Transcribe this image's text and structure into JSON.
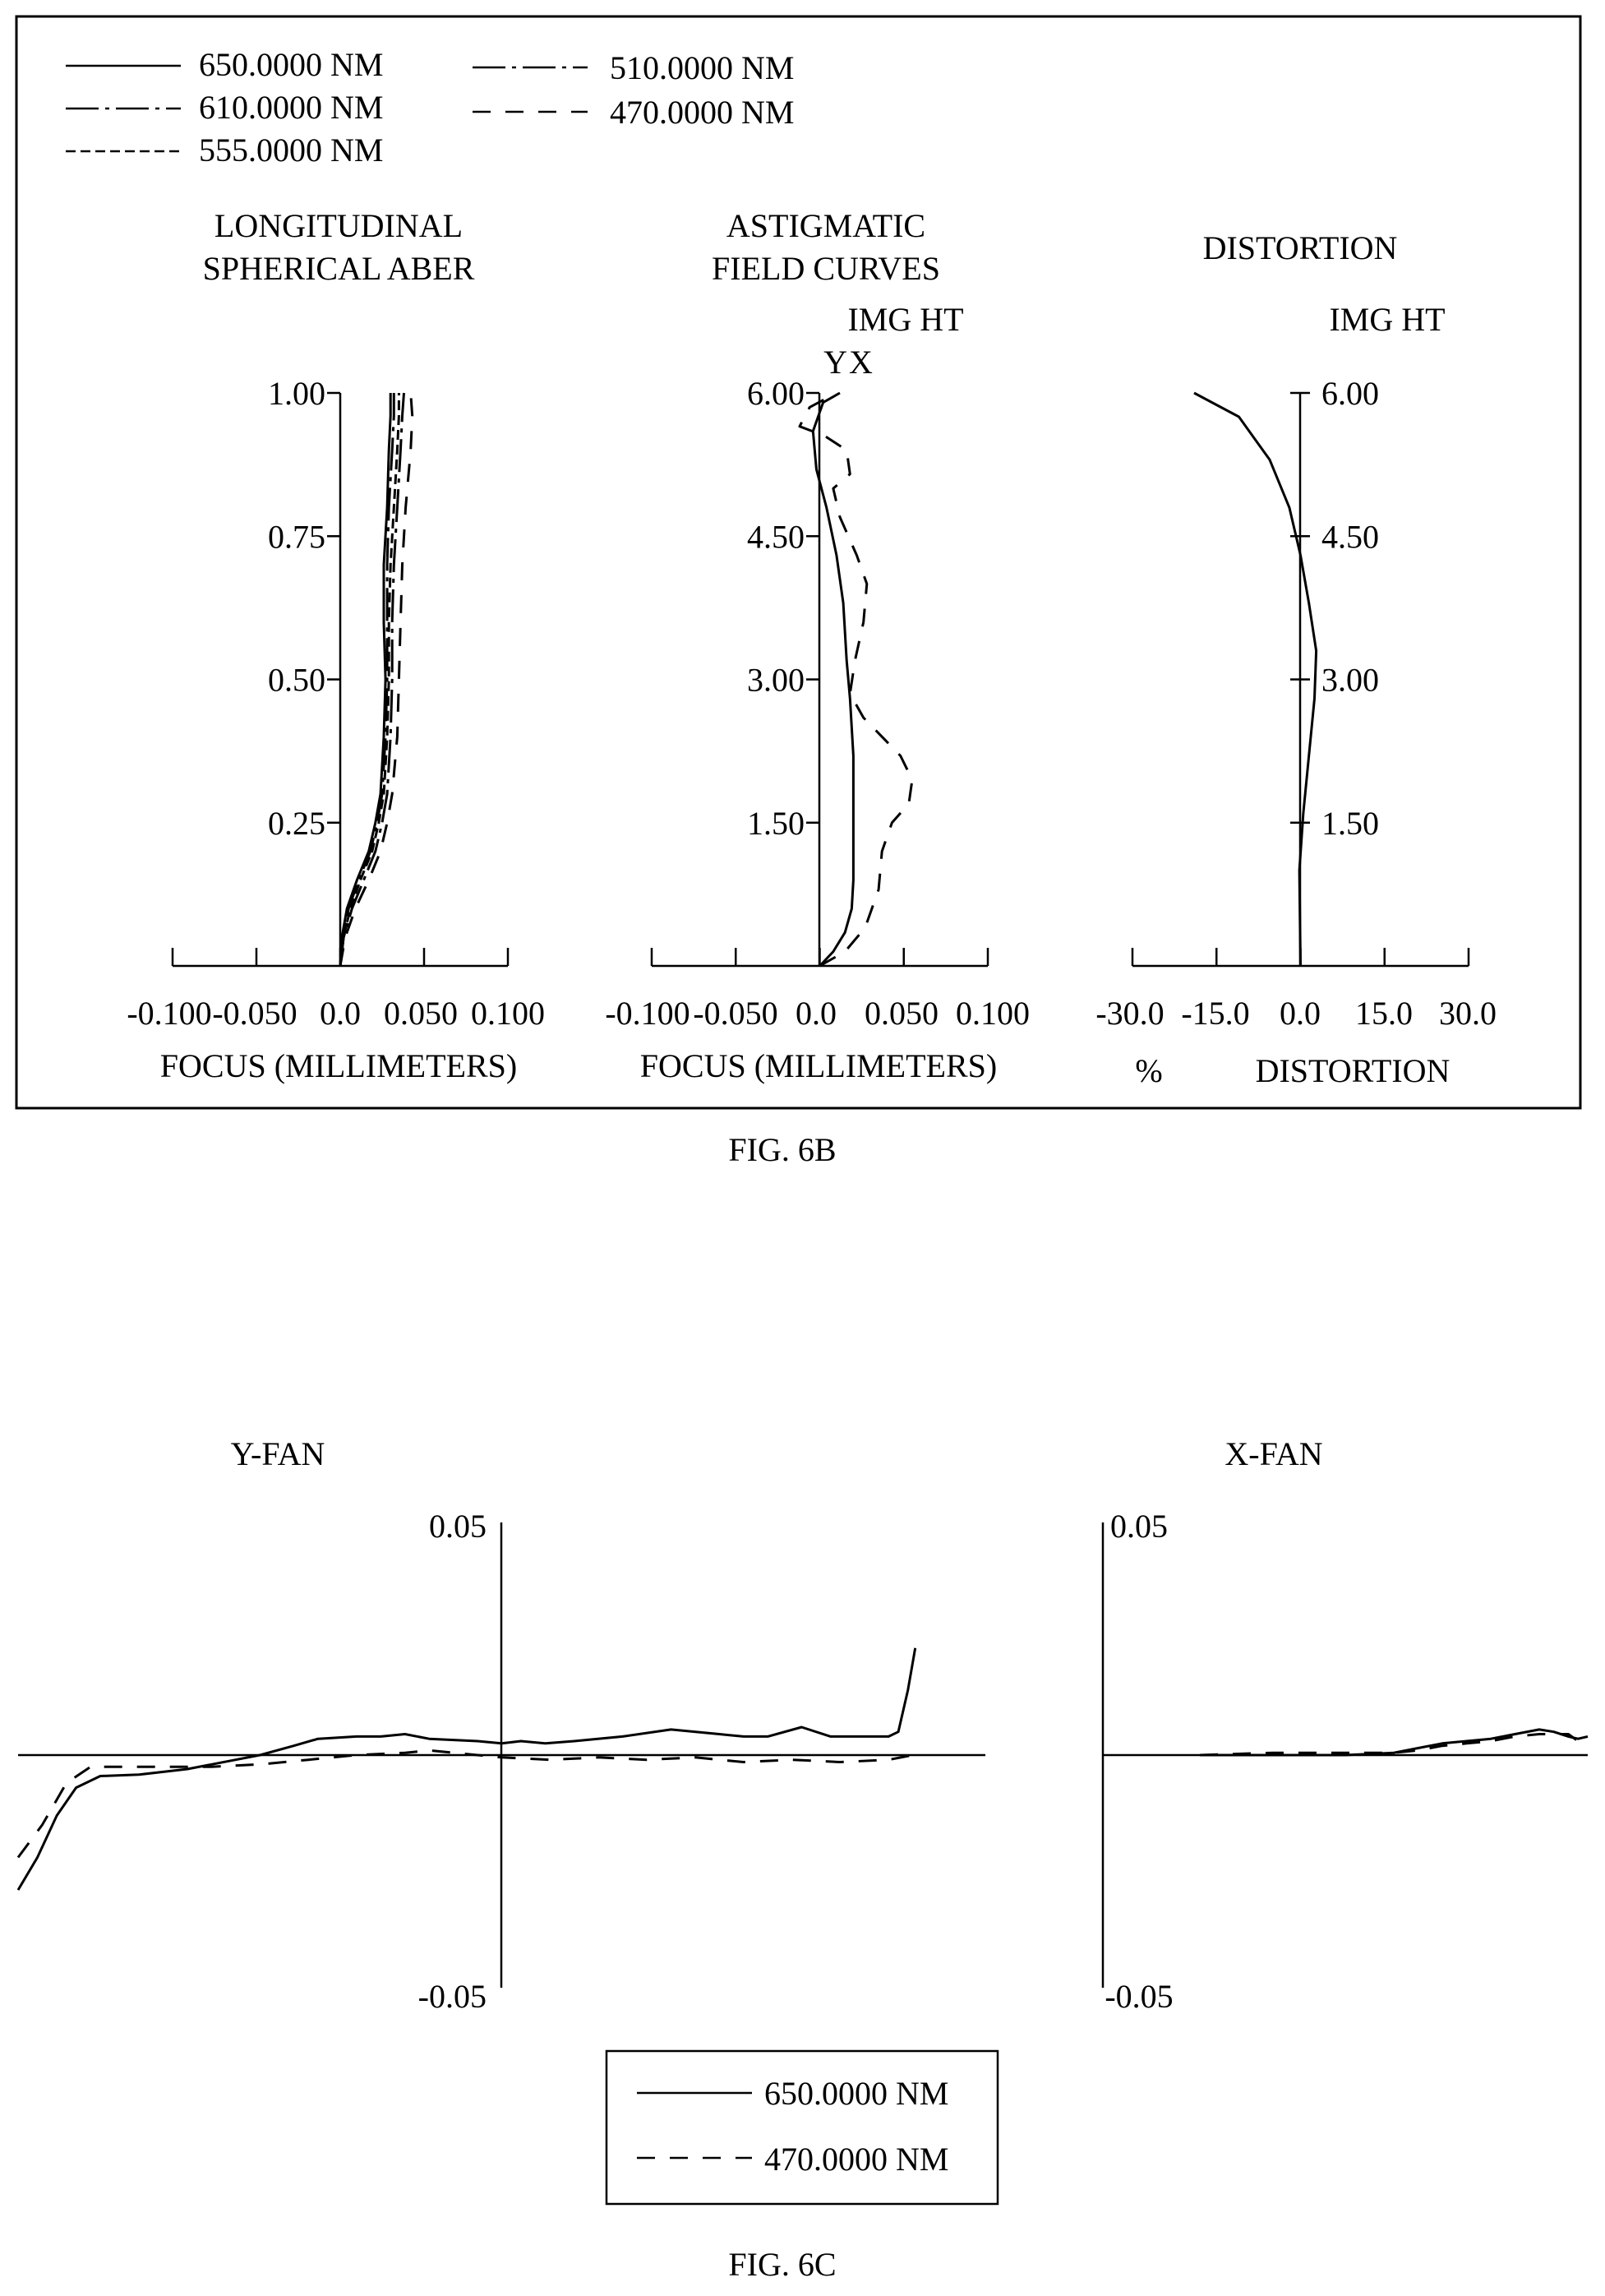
{
  "fig6b": {
    "caption": "FIG. 6B",
    "legend": [
      {
        "label": "650.0000 NM",
        "dash": "solid"
      },
      {
        "label": "610.0000 NM",
        "dash": "dashdot"
      },
      {
        "label": "555.0000 NM",
        "dash": "shortdash"
      },
      {
        "label": "510.0000 NM",
        "dash": "dashdot"
      },
      {
        "label": "470.0000 NM",
        "dash": "longdash"
      }
    ]
  },
  "fig6c": {
    "caption": "FIG. 6C",
    "legend": [
      {
        "label": "650.0000 NM",
        "dash": "solid"
      },
      {
        "label": "470.0000 NM",
        "dash": "longdash"
      }
    ]
  },
  "chart_data": [
    {
      "id": "longitudinal",
      "type": "line",
      "title": "LONGITUDINAL",
      "subtitle": "SPHERICAL ABER",
      "xlabel": "FOCUS (MILLIMETERS)",
      "xlim": [
        -0.1,
        0.1
      ],
      "ylim": [
        0,
        1
      ],
      "xticks": [
        "-0.100",
        "-0.050",
        "0.0",
        "0.050",
        "0.100"
      ],
      "yticks": [
        "1.00",
        "0.75",
        "0.50",
        "0.25"
      ],
      "ytick_values": [
        1.0,
        0.75,
        0.5,
        0.25
      ],
      "series": [
        {
          "name": "650.0000 NM",
          "dash": "solid",
          "points": [
            [
              0,
              0
            ],
            [
              0.001,
              0.05
            ],
            [
              0.004,
              0.1
            ],
            [
              0.01,
              0.15
            ],
            [
              0.017,
              0.2
            ],
            [
              0.021,
              0.25
            ],
            [
              0.024,
              0.3
            ],
            [
              0.026,
              0.4
            ],
            [
              0.027,
              0.5
            ],
            [
              0.026,
              0.6
            ],
            [
              0.026,
              0.7
            ],
            [
              0.028,
              0.8
            ],
            [
              0.029,
              0.9
            ],
            [
              0.03,
              0.96
            ],
            [
              0.03,
              1.0
            ]
          ]
        },
        {
          "name": "610.0000 NM",
          "dash": "dashdot",
          "points": [
            [
              0,
              0
            ],
            [
              0.002,
              0.05
            ],
            [
              0.005,
              0.1
            ],
            [
              0.011,
              0.15
            ],
            [
              0.018,
              0.2
            ],
            [
              0.022,
              0.25
            ],
            [
              0.025,
              0.3
            ],
            [
              0.027,
              0.4
            ],
            [
              0.028,
              0.5
            ],
            [
              0.028,
              0.6
            ],
            [
              0.028,
              0.7
            ],
            [
              0.029,
              0.8
            ],
            [
              0.031,
              0.9
            ],
            [
              0.032,
              0.96
            ],
            [
              0.032,
              1.0
            ]
          ]
        },
        {
          "name": "555.0000 NM",
          "dash": "shortdash",
          "points": [
            [
              0,
              0
            ],
            [
              0.002,
              0.05
            ],
            [
              0.006,
              0.1
            ],
            [
              0.012,
              0.15
            ],
            [
              0.019,
              0.2
            ],
            [
              0.023,
              0.25
            ],
            [
              0.026,
              0.3
            ],
            [
              0.028,
              0.4
            ],
            [
              0.029,
              0.5
            ],
            [
              0.029,
              0.6
            ],
            [
              0.03,
              0.7
            ],
            [
              0.032,
              0.8
            ],
            [
              0.034,
              0.9
            ],
            [
              0.035,
              0.96
            ],
            [
              0.035,
              1.0
            ]
          ]
        },
        {
          "name": "510.0000 NM",
          "dash": "dashdot",
          "points": [
            [
              0,
              0
            ],
            [
              0.002,
              0.05
            ],
            [
              0.007,
              0.1
            ],
            [
              0.014,
              0.15
            ],
            [
              0.021,
              0.2
            ],
            [
              0.025,
              0.25
            ],
            [
              0.028,
              0.3
            ],
            [
              0.03,
              0.4
            ],
            [
              0.031,
              0.5
            ],
            [
              0.031,
              0.6
            ],
            [
              0.032,
              0.7
            ],
            [
              0.034,
              0.8
            ],
            [
              0.036,
              0.9
            ],
            [
              0.037,
              0.96
            ],
            [
              0.038,
              1.0
            ]
          ]
        },
        {
          "name": "470.0000 NM",
          "dash": "longdash",
          "points": [
            [
              0,
              0
            ],
            [
              0.003,
              0.05
            ],
            [
              0.009,
              0.1
            ],
            [
              0.017,
              0.15
            ],
            [
              0.024,
              0.2
            ],
            [
              0.028,
              0.25
            ],
            [
              0.031,
              0.3
            ],
            [
              0.034,
              0.4
            ],
            [
              0.035,
              0.5
            ],
            [
              0.036,
              0.6
            ],
            [
              0.037,
              0.7
            ],
            [
              0.039,
              0.8
            ],
            [
              0.042,
              0.9
            ],
            [
              0.043,
              0.96
            ],
            [
              0.042,
              1.0
            ]
          ]
        }
      ]
    },
    {
      "id": "astigmatic",
      "type": "line",
      "title": "ASTIGMATIC",
      "subtitle": "FIELD CURVES",
      "xlabel": "FOCUS (MILLIMETERS)",
      "ylabel": "IMG HT",
      "curve_labels": "YX",
      "xlim": [
        -0.1,
        0.1
      ],
      "ylim": [
        0,
        6
      ],
      "xticks": [
        "-0.100",
        "-0.050",
        "0.0",
        "0.050",
        "0.100"
      ],
      "yticks": [
        "6.00",
        "4.50",
        "3.00",
        "1.50"
      ],
      "ytick_values": [
        6.0,
        4.5,
        3.0,
        1.5
      ],
      "series": [
        {
          "dash": "solid",
          "points": [
            [
              0,
              0
            ],
            [
              0.008,
              0.15
            ],
            [
              0.015,
              0.35
            ],
            [
              0.019,
              0.6
            ],
            [
              0.02,
              0.9
            ],
            [
              0.02,
              1.5
            ],
            [
              0.02,
              2.2
            ],
            [
              0.018,
              2.8
            ],
            [
              0.016,
              3.2
            ],
            [
              0.014,
              3.8
            ],
            [
              0.01,
              4.3
            ],
            [
              0.004,
              4.8
            ],
            [
              -0.002,
              5.2
            ],
            [
              -0.004,
              5.6
            ],
            [
              0.002,
              5.9
            ],
            [
              0.012,
              6.0
            ]
          ]
        },
        {
          "dash": "longdash",
          "points": [
            [
              0,
              0
            ],
            [
              0.015,
              0.15
            ],
            [
              0.027,
              0.4
            ],
            [
              0.035,
              0.8
            ],
            [
              0.037,
              1.2
            ],
            [
              0.043,
              1.5
            ],
            [
              0.053,
              1.7
            ],
            [
              0.055,
              1.95
            ],
            [
              0.048,
              2.2
            ],
            [
              0.037,
              2.4
            ],
            [
              0.026,
              2.6
            ],
            [
              0.018,
              2.85
            ],
            [
              0.021,
              3.2
            ],
            [
              0.026,
              3.6
            ],
            [
              0.028,
              4.0
            ],
            [
              0.022,
              4.3
            ],
            [
              0.012,
              4.7
            ],
            [
              0.008,
              5.0
            ],
            [
              0.018,
              5.15
            ],
            [
              0.016,
              5.4
            ],
            [
              0.003,
              5.55
            ],
            [
              -0.012,
              5.65
            ],
            [
              -0.006,
              5.85
            ],
            [
              0.01,
              6.0
            ]
          ]
        }
      ]
    },
    {
      "id": "distortion",
      "type": "line",
      "title": "DISTORTION",
      "ylabel": "IMG HT",
      "xlabel": "DISTORTION",
      "xunit": "%",
      "xlim": [
        -30,
        30
      ],
      "ylim": [
        0,
        6
      ],
      "xticks": [
        "-30.0",
        "-15.0",
        "0.0",
        "15.0",
        "30.0"
      ],
      "yticks": [
        "6.00",
        "4.50",
        "3.00",
        "1.50"
      ],
      "ytick_values": [
        6.0,
        4.5,
        3.0,
        1.5
      ],
      "series": [
        {
          "dash": "solid",
          "points": [
            [
              0,
              0
            ],
            [
              -0.2,
              1.0
            ],
            [
              0.5,
              1.6
            ],
            [
              1.5,
              2.2
            ],
            [
              2.5,
              2.8
            ],
            [
              2.8,
              3.3
            ],
            [
              1.5,
              3.8
            ],
            [
              0,
              4.3
            ],
            [
              -2,
              4.8
            ],
            [
              -5.5,
              5.3
            ],
            [
              -11,
              5.75
            ],
            [
              -19,
              6.0
            ]
          ]
        }
      ]
    },
    {
      "id": "yfan",
      "type": "line",
      "title": "Y-FAN",
      "xlim": [
        -1,
        1
      ],
      "ylim": [
        -0.05,
        0.05
      ],
      "yticks": [
        "0.05",
        "-0.05"
      ],
      "ytick_values": [
        0.05,
        -0.05
      ],
      "series": [
        {
          "name": "650.0000 NM",
          "dash": "solid",
          "points": [
            [
              -1.0,
              -0.029
            ],
            [
              -0.96,
              -0.022
            ],
            [
              -0.92,
              -0.013
            ],
            [
              -0.88,
              -0.007
            ],
            [
              -0.83,
              -0.0045
            ],
            [
              -0.75,
              -0.0042
            ],
            [
              -0.65,
              -0.003
            ],
            [
              -0.55,
              -0.001
            ],
            [
              -0.5,
              0.0
            ],
            [
              -0.43,
              0.002
            ],
            [
              -0.38,
              0.0035
            ],
            [
              -0.3,
              0.004
            ],
            [
              -0.25,
              0.004
            ],
            [
              -0.2,
              0.0045
            ],
            [
              -0.15,
              0.0035
            ],
            [
              -0.05,
              0.003
            ],
            [
              0,
              0.0025
            ],
            [
              0.04,
              0.003
            ],
            [
              0.09,
              0.0025
            ],
            [
              0.15,
              0.003
            ],
            [
              0.25,
              0.004
            ],
            [
              0.35,
              0.0055
            ],
            [
              0.45,
              0.0045
            ],
            [
              0.5,
              0.004
            ],
            [
              0.55,
              0.004
            ],
            [
              0.62,
              0.006
            ],
            [
              0.68,
              0.004
            ],
            [
              0.75,
              0.004
            ],
            [
              0.8,
              0.004
            ],
            [
              0.82,
              0.005
            ],
            [
              0.84,
              0.014
            ],
            [
              0.855,
              0.023
            ]
          ]
        },
        {
          "name": "470.0000 NM",
          "dash": "longdash",
          "points": [
            [
              -1.0,
              -0.022
            ],
            [
              -0.95,
              -0.015
            ],
            [
              -0.9,
              -0.006
            ],
            [
              -0.85,
              -0.0025
            ],
            [
              -0.75,
              -0.0025
            ],
            [
              -0.6,
              -0.0025
            ],
            [
              -0.5,
              -0.002
            ],
            [
              -0.4,
              -0.001
            ],
            [
              -0.3,
              0.0
            ],
            [
              -0.2,
              0.0005
            ],
            [
              -0.15,
              0.001
            ],
            [
              -0.05,
              0.0
            ],
            [
              0,
              -0.0005
            ],
            [
              0.1,
              -0.001
            ],
            [
              0.2,
              -0.0005
            ],
            [
              0.3,
              -0.001
            ],
            [
              0.4,
              -0.0005
            ],
            [
              0.5,
              -0.0015
            ],
            [
              0.6,
              -0.001
            ],
            [
              0.7,
              -0.0015
            ],
            [
              0.8,
              -0.001
            ],
            [
              0.85,
              0.0
            ]
          ]
        }
      ]
    },
    {
      "id": "xfan",
      "type": "line",
      "title": "X-FAN",
      "xlim": [
        0,
        1
      ],
      "ylim": [
        -0.05,
        0.05
      ],
      "yticks": [
        "0.05",
        "-0.05"
      ],
      "ytick_values": [
        0.05,
        -0.05
      ],
      "series": [
        {
          "name": "650.0000 NM",
          "dash": "solid",
          "points": [
            [
              0.2,
              0.0
            ],
            [
              0.35,
              0.0
            ],
            [
              0.5,
              0.0
            ],
            [
              0.6,
              0.0005
            ],
            [
              0.65,
              0.0015
            ],
            [
              0.7,
              0.0025
            ],
            [
              0.75,
              0.003
            ],
            [
              0.8,
              0.0035
            ],
            [
              0.85,
              0.0045
            ],
            [
              0.9,
              0.0055
            ],
            [
              0.93,
              0.005
            ],
            [
              0.96,
              0.004
            ],
            [
              0.98,
              0.0035
            ],
            [
              1.0,
              0.004
            ]
          ]
        },
        {
          "name": "470.0000 NM",
          "dash": "longdash",
          "points": [
            [
              0.2,
              0.0
            ],
            [
              0.35,
              0.0005
            ],
            [
              0.5,
              0.0005
            ],
            [
              0.6,
              0.0005
            ],
            [
              0.65,
              0.001
            ],
            [
              0.7,
              0.002
            ],
            [
              0.75,
              0.0025
            ],
            [
              0.8,
              0.003
            ],
            [
              0.85,
              0.004
            ],
            [
              0.9,
              0.0045
            ],
            [
              0.93,
              0.0045
            ],
            [
              0.96,
              0.0045
            ],
            [
              0.98,
              0.003
            ],
            [
              1.0,
              0.0045
            ]
          ]
        }
      ]
    }
  ]
}
